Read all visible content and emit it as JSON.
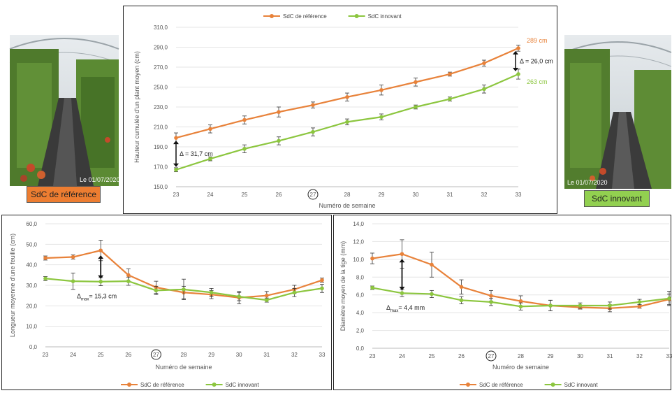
{
  "colors": {
    "reference": "#e8823a",
    "innovant": "#8cc63f",
    "photo_reference_label_bg": "#ed7d31",
    "photo_innovant_label_bg": "#92d050",
    "axis": "#888888",
    "grid": "#e4e4e4",
    "error": "#333333"
  },
  "photos": {
    "left": {
      "date": "Le 01/07/2020",
      "label": "SdC de référence"
    },
    "right": {
      "date": "Le 01/07/2020",
      "label": "SdC innovant"
    }
  },
  "chart_data": [
    {
      "type": "line",
      "xlabel": "Numéro de semaine",
      "ylabel": "Hauteur cumulée d'un plant moyen (cm)",
      "x": [
        23,
        24,
        25,
        26,
        27,
        28,
        29,
        30,
        31,
        32,
        33
      ],
      "x_ticks": [
        "23",
        "24",
        "25",
        "26",
        "27",
        "28",
        "29",
        "30",
        "31",
        "32",
        "33"
      ],
      "highlight_x": 27,
      "ylim": [
        150,
        310
      ],
      "y_ticks": [
        "150,0",
        "170,0",
        "190,0",
        "210,0",
        "230,0",
        "250,0",
        "270,0",
        "290,0",
        "310,0"
      ],
      "grid": true,
      "legend_position": "top",
      "series": [
        {
          "name": "SdC de référence",
          "color_key": "reference",
          "values": [
            199,
            208,
            217,
            225,
            232,
            240,
            247,
            255,
            263,
            274,
            289
          ],
          "errors": [
            5,
            4,
            4,
            5,
            3,
            4,
            5,
            4,
            2,
            3,
            3
          ]
        },
        {
          "name": "SdC innovant",
          "color_key": "innovant",
          "values": [
            167,
            178,
            188,
            196,
            205,
            215,
            220,
            230,
            238,
            248,
            263
          ],
          "errors": [
            2,
            2,
            4,
            4,
            4,
            3,
            3,
            2,
            2,
            4,
            5
          ]
        }
      ],
      "annotations": [
        {
          "text": "289 cm",
          "color_key": "reference"
        },
        {
          "text": "263 cm",
          "color_key": "innovant"
        },
        {
          "text": "Δ = 26,0 cm"
        },
        {
          "text": "Δ = 31,7 cm"
        }
      ]
    },
    {
      "type": "line",
      "xlabel": "Numéro de semaine",
      "ylabel": "Longueur moyenne d'une feuille (cm)",
      "x": [
        23,
        24,
        25,
        26,
        27,
        28,
        29,
        30,
        31,
        32,
        33
      ],
      "x_ticks": [
        "23",
        "24",
        "25",
        "26",
        "27",
        "28",
        "29",
        "30",
        "31",
        "32",
        "33"
      ],
      "highlight_x": 27,
      "ylim": [
        0,
        60
      ],
      "y_ticks": [
        "0,0",
        "10,0",
        "20,0",
        "30,0",
        "40,0",
        "50,0",
        "60,0"
      ],
      "grid": true,
      "legend_position": "bottom",
      "series": [
        {
          "name": "SdC de référence",
          "color_key": "reference",
          "values": [
            43.3,
            43.8,
            47.0,
            35.0,
            29.0,
            26.5,
            25.5,
            24.0,
            25.0,
            28.0,
            32.5
          ],
          "errors": [
            1,
            1,
            5,
            3,
            3,
            3,
            2,
            3,
            2,
            2,
            1
          ]
        },
        {
          "name": "SdC innovant",
          "color_key": "innovant",
          "values": [
            33.3,
            32.0,
            31.8,
            32.0,
            27.5,
            28.0,
            26.5,
            24.5,
            22.8,
            26.5,
            28.5
          ],
          "errors": [
            1,
            4,
            2,
            2,
            2,
            5,
            2,
            2,
            1,
            2,
            2
          ]
        }
      ],
      "annotations": [
        {
          "text": "Δ",
          "subscript": "max",
          "suffix": "= 15,3 cm"
        }
      ]
    },
    {
      "type": "line",
      "xlabel": "Numéro de semaine",
      "ylabel": "Diamètre moyen de la tige (mm)",
      "x": [
        23,
        24,
        25,
        26,
        27,
        28,
        29,
        30,
        31,
        32,
        33
      ],
      "x_ticks": [
        "23",
        "24",
        "25",
        "26",
        "27",
        "28",
        "29",
        "30",
        "31",
        "32",
        "33"
      ],
      "highlight_x": 27,
      "ylim": [
        0,
        14
      ],
      "y_ticks": [
        "0,0",
        "2,0",
        "4,0",
        "6,0",
        "8,0",
        "10,0",
        "12,0",
        "14,0"
      ],
      "grid": true,
      "legend_position": "bottom",
      "series": [
        {
          "name": "SdC de référence",
          "color_key": "reference",
          "values": [
            10.1,
            10.6,
            9.4,
            6.9,
            5.9,
            5.3,
            4.8,
            4.6,
            4.5,
            4.7,
            5.5
          ],
          "errors": [
            0.6,
            1.6,
            1.4,
            0.8,
            0.6,
            0.6,
            0.6,
            0.2,
            0.4,
            0.2,
            0.6
          ]
        },
        {
          "name": "SdC innovant",
          "color_key": "innovant",
          "values": [
            6.8,
            6.2,
            6.1,
            5.4,
            5.2,
            4.7,
            4.8,
            4.8,
            4.8,
            5.2,
            5.6
          ],
          "errors": [
            0.2,
            0.4,
            0.4,
            0.4,
            0.4,
            0.4,
            0.6,
            0.3,
            0.4,
            0.3,
            0.8
          ]
        }
      ],
      "annotations": [
        {
          "text": "Δ",
          "subscript": "max",
          "suffix": "= 4,4 mm"
        }
      ]
    }
  ]
}
